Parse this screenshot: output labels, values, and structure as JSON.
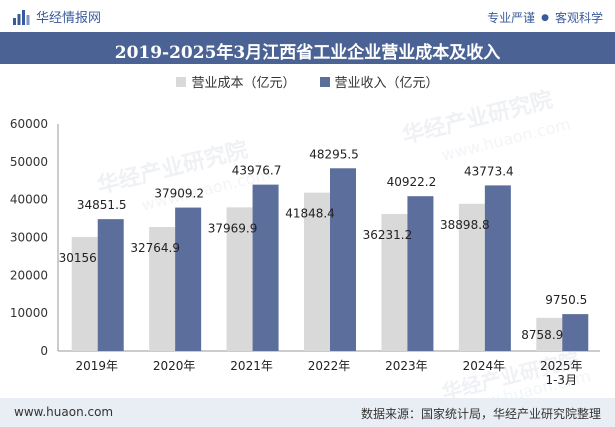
{
  "header": {
    "brand": "华经情报网",
    "tagline_left": "专业严谨",
    "tagline_dot": "●",
    "tagline_right": "客观科学"
  },
  "watermark": {
    "text": "华经产业研究院",
    "url": "www.huaon.com"
  },
  "colors": {
    "cost": "#d9d9d9",
    "revenue": "#5b6e9c",
    "title_bg": "#4a6394",
    "footer_bg": "#e9edf4"
  },
  "chart_data": {
    "type": "bar",
    "title": "2019-2025年3月江西省工业企业营业成本及收入",
    "categories": [
      "2019年",
      "2020年",
      "2021年",
      "2022年",
      "2023年",
      "2024年",
      "2025年\n1-3月"
    ],
    "series": [
      {
        "name": "营业成本（亿元）",
        "values": [
          30156,
          32764.9,
          37969.9,
          41848.4,
          36231.2,
          38898.8,
          8758.9
        ]
      },
      {
        "name": "营业收入（亿元）",
        "values": [
          34851.5,
          37909.2,
          43976.7,
          48295.5,
          40922.2,
          43773.4,
          9750.5
        ]
      }
    ],
    "labels": [
      [
        "30156",
        "32764.9",
        "37969.9",
        "41848.4",
        "36231.2",
        "38898.8",
        "8758.9"
      ],
      [
        "34851.5",
        "37909.2",
        "43976.7",
        "48295.5",
        "40922.2",
        "43773.4",
        "9750.5"
      ]
    ],
    "yticks": [
      "0",
      "10000",
      "20000",
      "30000",
      "40000",
      "50000",
      "60000"
    ],
    "ylim": [
      0,
      60000
    ],
    "xlabel": "",
    "ylabel": ""
  },
  "footer": {
    "url": "www.huaon.com",
    "source": "数据来源：国家统计局，华经产业研究院整理"
  }
}
